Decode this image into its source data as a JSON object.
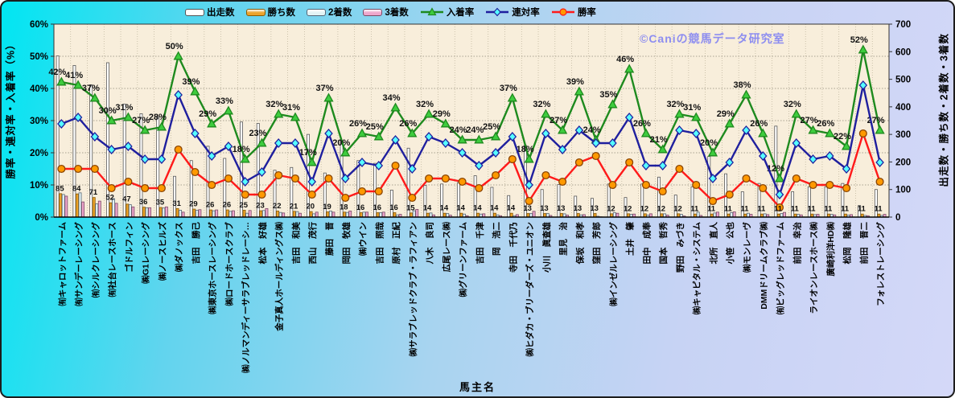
{
  "watermark": "©Caniの競馬データ研究室",
  "axes": {
    "left": {
      "title": "勝率・連対率・入着率（%）",
      "max": 60,
      "ticks": [
        "0%",
        "10%",
        "20%",
        "30%",
        "40%",
        "50%",
        "60%"
      ]
    },
    "right": {
      "title": "出走数・勝ち数・2着数・3着数",
      "max": 700,
      "ticks": [
        "0",
        "100",
        "200",
        "300",
        "400",
        "500",
        "600",
        "700"
      ]
    },
    "x": {
      "title": "馬主名"
    }
  },
  "legend": [
    {
      "label": "出走数",
      "type": "bar",
      "color": "#ffffff",
      "border": "#555555"
    },
    {
      "label": "勝ち数",
      "type": "bar",
      "color": "#eda32b",
      "border": "#8a5a00"
    },
    {
      "label": "2着数",
      "type": "bar",
      "color": "#e2f3f5",
      "border": "#556677"
    },
    {
      "label": "3着数",
      "type": "bar",
      "color": "#eea6cc",
      "border": "#7a4a66"
    },
    {
      "label": "入着率",
      "type": "line",
      "color": "#1e8a1e",
      "marker": "triangle",
      "marker_fill": "#3ecc3e"
    },
    {
      "label": "連対率",
      "type": "line",
      "color": "#1f1f9e",
      "marker": "diamond",
      "marker_fill": "#55ffff"
    },
    {
      "label": "勝率",
      "type": "line",
      "color": "#ff1a1a",
      "marker": "circle",
      "marker_fill": "#ff9900"
    }
  ],
  "chart_data": {
    "type": "bar+line combo",
    "grid": true,
    "left_axis_range": [
      0,
      60
    ],
    "right_axis_range": [
      0,
      700
    ],
    "categories": [
      "㈲キャロットファーム",
      "㈲サンデーレーシング",
      "㈲シルクレーシング",
      "㈲社台レースホース",
      "ゴドルフィン",
      "㈱G1レーシング",
      "㈱ノースヒルズ",
      "㈱ダノックス",
      "吉田　勝己",
      "㈱東京ホースレーシング",
      "㈱ロードホースクラブ",
      "㈱ノルマンディーサラブレッドレーシ…",
      "松本　好雄",
      "金子真人ホールディングス㈱",
      "吉田　和美",
      "西山　茂行",
      "藤田　晋",
      "岡田　牧雄",
      "㈱ウイン",
      "吉田　照哉",
      "原村　正紀",
      "㈱サラブレッドクラブ・ラフィアン",
      "八木　良司",
      "広尾レース㈱",
      "㈱グリーンファーム",
      "吉田　千津",
      "岡　浩二",
      "寺田　千代乃",
      "㈱ヒダカ・ブリーダーズ・ユニオン",
      "小川　眞査雄",
      "里見　治",
      "保坂　和孝",
      "窪田　芳郎",
      "㈱インゼルレーシング",
      "土井　肇",
      "田中　成奉",
      "国本　哲秀",
      "野田　みづき",
      "㈱キャピタル・システム",
      "北所　直人",
      "小笹　公也",
      "㈱モンレーヴ",
      "DMMドリームクラブ㈱",
      "㈲ビッグレッドファーム",
      "前田　幸治",
      "ライオンレースホース㈱",
      "廣崎利洋HD㈱",
      "松岡　隆雄",
      "前田　晋二",
      "フォレストレーシング"
    ],
    "series": [
      {
        "key": "starts",
        "name": "出走数",
        "type": "bar",
        "axis": "right",
        "color": "#ffffff",
        "border": "#555555",
        "values": [
          585,
          550,
          480,
          560,
          410,
          375,
          365,
          148,
          205,
          257,
          213,
          345,
          340,
          170,
          180,
          300,
          160,
          275,
          205,
          195,
          98,
          250,
          115,
          120,
          125,
          150,
          108,
          78,
          260,
          100,
          118,
          76,
          68,
          120,
          71,
          120,
          145,
          80,
          110,
          220,
          157,
          92,
          122,
          330,
          92,
          110,
          110,
          122,
          42,
          100
        ]
      },
      {
        "key": "wins",
        "name": "勝ち数",
        "type": "bar",
        "axis": "right",
        "color": "#eda32b",
        "border": "#8a5a00",
        "show_labels": true,
        "values": [
          85,
          84,
          71,
          52,
          47,
          36,
          35,
          31,
          29,
          26,
          26,
          25,
          23,
          22,
          21,
          20,
          19,
          18,
          16,
          16,
          16,
          15,
          14,
          14,
          14,
          14,
          14,
          14,
          13,
          13,
          13,
          13,
          13,
          12,
          12,
          12,
          12,
          12,
          11,
          11,
          11,
          11,
          11,
          11,
          11,
          11,
          11,
          11,
          11,
          11
        ]
      },
      {
        "key": "second",
        "name": "2着数",
        "type": "bar",
        "axis": "right",
        "color": "#e2f3f5",
        "border": "#556677",
        "values": [
          82,
          88,
          48,
          67,
          45,
          34,
          33,
          25,
          25,
          23,
          21,
          14,
          24,
          17,
          20,
          12,
          22,
          17,
          18,
          16,
          8,
          23,
          15,
          13,
          11,
          11,
          8,
          5,
          13,
          13,
          12,
          8,
          3,
          16,
          10,
          7,
          12,
          10,
          18,
          15,
          16,
          14,
          12,
          13,
          10,
          9,
          10,
          7,
          6,
          6
        ]
      },
      {
        "key": "third",
        "name": "3着数",
        "type": "bar",
        "axis": "right",
        "color": "#eea6cc",
        "border": "#7a4a66",
        "values": [
          76,
          55,
          58,
          50,
          37,
          34,
          37,
          18,
          27,
          26,
          23,
          24,
          31,
          15,
          14,
          18,
          18,
          22,
          18,
          18,
          10,
          28,
          8,
          7,
          5,
          12,
          5,
          9,
          21,
          6,
          7,
          9,
          1,
          14,
          11,
          12,
          7,
          4,
          6,
          18,
          19,
          10,
          9,
          17,
          8,
          10,
          8,
          9,
          5,
          10
        ]
      },
      {
        "key": "placing",
        "name": "入着率",
        "type": "line",
        "axis": "left",
        "color": "#1e8a1e",
        "marker": "triangle",
        "marker_fill": "#3ecc3e",
        "show_labels": true,
        "label_suffix": "%",
        "values": [
          42,
          41,
          37,
          30,
          31,
          27,
          28,
          50,
          39,
          29,
          33,
          18,
          23,
          32,
          31,
          17,
          37,
          20,
          26,
          25,
          34,
          26,
          32,
          29,
          24,
          24,
          25,
          37,
          18,
          32,
          27,
          39,
          24,
          35,
          46,
          26,
          21,
          32,
          31,
          20,
          29,
          38,
          26,
          12,
          32,
          27,
          26,
          22,
          52,
          27
        ]
      },
      {
        "key": "quinella",
        "name": "連対率",
        "type": "line",
        "axis": "left",
        "color": "#1f1f9e",
        "marker": "diamond",
        "marker_fill": "#55ffff",
        "values": [
          29,
          31,
          25,
          21,
          22,
          18,
          18,
          38,
          26,
          19,
          22,
          11,
          14,
          23,
          23,
          11,
          26,
          12,
          17,
          16,
          24,
          15,
          25,
          23,
          20,
          16,
          20,
          25,
          10,
          26,
          21,
          27,
          23,
          23,
          31,
          16,
          16,
          27,
          26,
          12,
          17,
          27,
          19,
          7,
          23,
          18,
          19,
          15,
          41,
          17
        ]
      },
      {
        "key": "winrate",
        "name": "勝率",
        "type": "line",
        "axis": "left",
        "color": "#ff1a1a",
        "marker": "circle",
        "marker_fill": "#ff9900",
        "values": [
          15,
          15,
          15,
          9,
          11,
          9,
          9,
          21,
          14,
          10,
          12,
          7,
          7,
          13,
          12,
          7,
          12,
          6,
          8,
          8,
          16,
          6,
          12,
          12,
          11,
          9,
          13,
          18,
          5,
          13,
          11,
          17,
          19,
          10,
          17,
          10,
          8,
          15,
          10,
          5,
          7,
          12,
          9,
          3,
          12,
          10,
          10,
          9,
          26,
          11
        ]
      }
    ]
  }
}
